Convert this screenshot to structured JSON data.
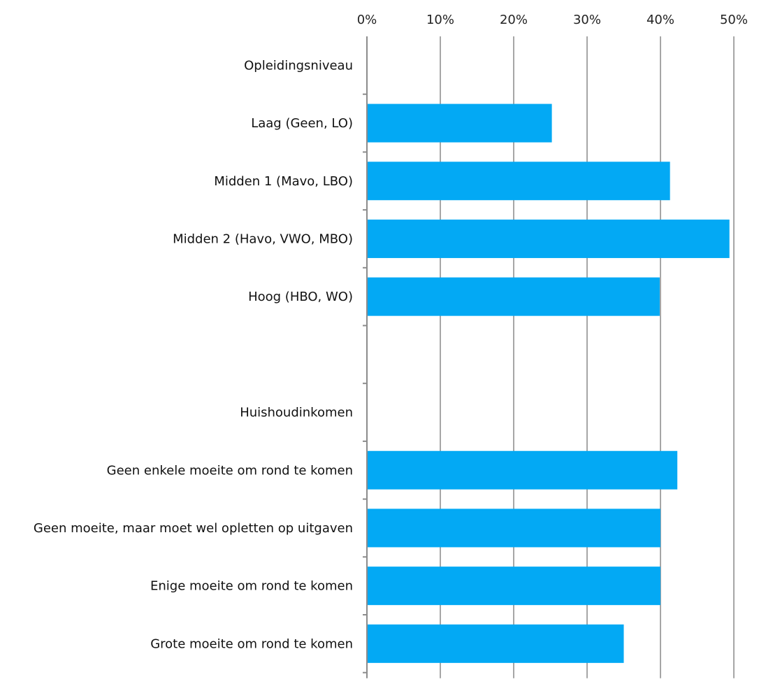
{
  "chart_data": {
    "type": "bar",
    "orientation": "horizontal",
    "categories": [
      "Opleidingsniveau",
      "Laag (Geen, LO)",
      "Midden 1 (Mavo, LBO)",
      "Midden 2 (Havo, VWO, MBO)",
      "Hoog (HBO, WO)",
      "",
      "Huishoudinkomen",
      "Geen enkele moeite om rond te komen",
      "Geen moeite, maar moet wel opletten op uitgaven",
      "Enige moeite om rond te komen",
      "Grote moeite om rond te komen"
    ],
    "values": [
      null,
      25.2,
      41.3,
      49.4,
      39.9,
      null,
      null,
      42.3,
      40.0,
      40.0,
      35.0
    ],
    "xlim": [
      0,
      50
    ],
    "x_ticks": [
      "0%",
      "10%",
      "20%",
      "30%",
      "40%",
      "50%"
    ],
    "x_axis_position": "top",
    "grid": true,
    "legend": "none",
    "title": "",
    "xlabel": "",
    "ylabel": "",
    "bar_color": "#03a9f4"
  }
}
